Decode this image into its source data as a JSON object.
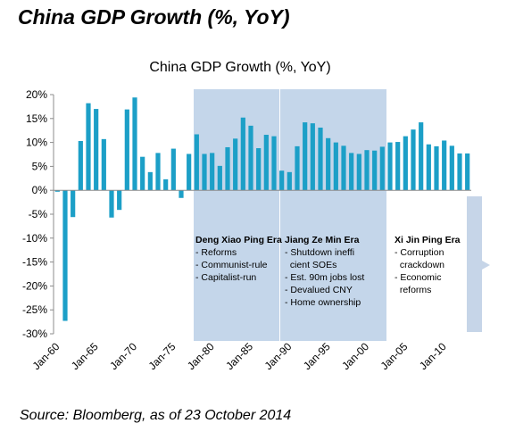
{
  "slide_title": "China GDP Growth (%, YoY)",
  "source": "Source: Bloomberg, as of 23 October 2014",
  "colors": {
    "bar": "#1c9fc7",
    "era_band": "#c4d6ea",
    "future_band": "#c6d5e8",
    "axis": "#8c8c8c"
  },
  "chart_data": {
    "type": "bar",
    "title": "China GDP Growth (%, YoY)",
    "xlabel": "",
    "ylabel": "",
    "ylim": [
      -30,
      20
    ],
    "yticks": [
      20,
      15,
      10,
      5,
      0,
      -5,
      -10,
      -15,
      -20,
      -25,
      -30
    ],
    "ytick_labels": [
      "20%",
      "15%",
      "10%",
      "5%",
      "0%",
      "-5%",
      "-10%",
      "-15%",
      "-20%",
      "-25%",
      "-30%"
    ],
    "xtick_labels": [
      "Jan-60",
      "Jan-65",
      "Jan-70",
      "Jan-75",
      "Jan-80",
      "Jan-85",
      "Jan-90",
      "Jan-95",
      "Jan-00",
      "Jan-05",
      "Jan-10"
    ],
    "categories": [
      1960,
      1961,
      1962,
      1963,
      1964,
      1965,
      1966,
      1967,
      1968,
      1969,
      1970,
      1971,
      1972,
      1973,
      1974,
      1975,
      1976,
      1977,
      1978,
      1979,
      1980,
      1981,
      1982,
      1983,
      1984,
      1985,
      1986,
      1987,
      1988,
      1989,
      1990,
      1991,
      1992,
      1993,
      1994,
      1995,
      1996,
      1997,
      1998,
      1999,
      2000,
      2001,
      2002,
      2003,
      2004,
      2005,
      2006,
      2007,
      2008,
      2009,
      2010,
      2011,
      2012,
      2013
    ],
    "values": [
      -0.3,
      -27.3,
      -5.6,
      10.3,
      18.2,
      17.0,
      10.7,
      -5.7,
      -4.1,
      16.9,
      19.4,
      7.0,
      3.8,
      7.8,
      2.3,
      8.7,
      -1.6,
      7.6,
      11.7,
      7.6,
      7.8,
      5.1,
      9.0,
      10.8,
      15.2,
      13.5,
      8.8,
      11.6,
      11.3,
      4.1,
      3.8,
      9.2,
      14.2,
      14.0,
      13.1,
      10.9,
      10.0,
      9.3,
      7.8,
      7.6,
      8.4,
      8.3,
      9.1,
      10.0,
      10.1,
      11.3,
      12.7,
      14.2,
      9.6,
      9.2,
      10.4,
      9.3,
      7.7,
      7.7
    ],
    "eras": [
      {
        "title": "Deng Xiao Ping Era",
        "items": [
          "- Reforms",
          "- Communist-rule",
          "- Capitalist-run"
        ]
      },
      {
        "title": "Jiang Ze Min Era",
        "items": [
          "- Shutdown ineffi",
          "  cient SOEs",
          "- Est. 90m jobs lost",
          "- Devalued CNY",
          "- Home ownership"
        ]
      },
      {
        "title": "Xi Jin Ping Era",
        "items": [
          "- Corruption",
          "  crackdown",
          "- Economic",
          "  reforms"
        ]
      }
    ]
  }
}
